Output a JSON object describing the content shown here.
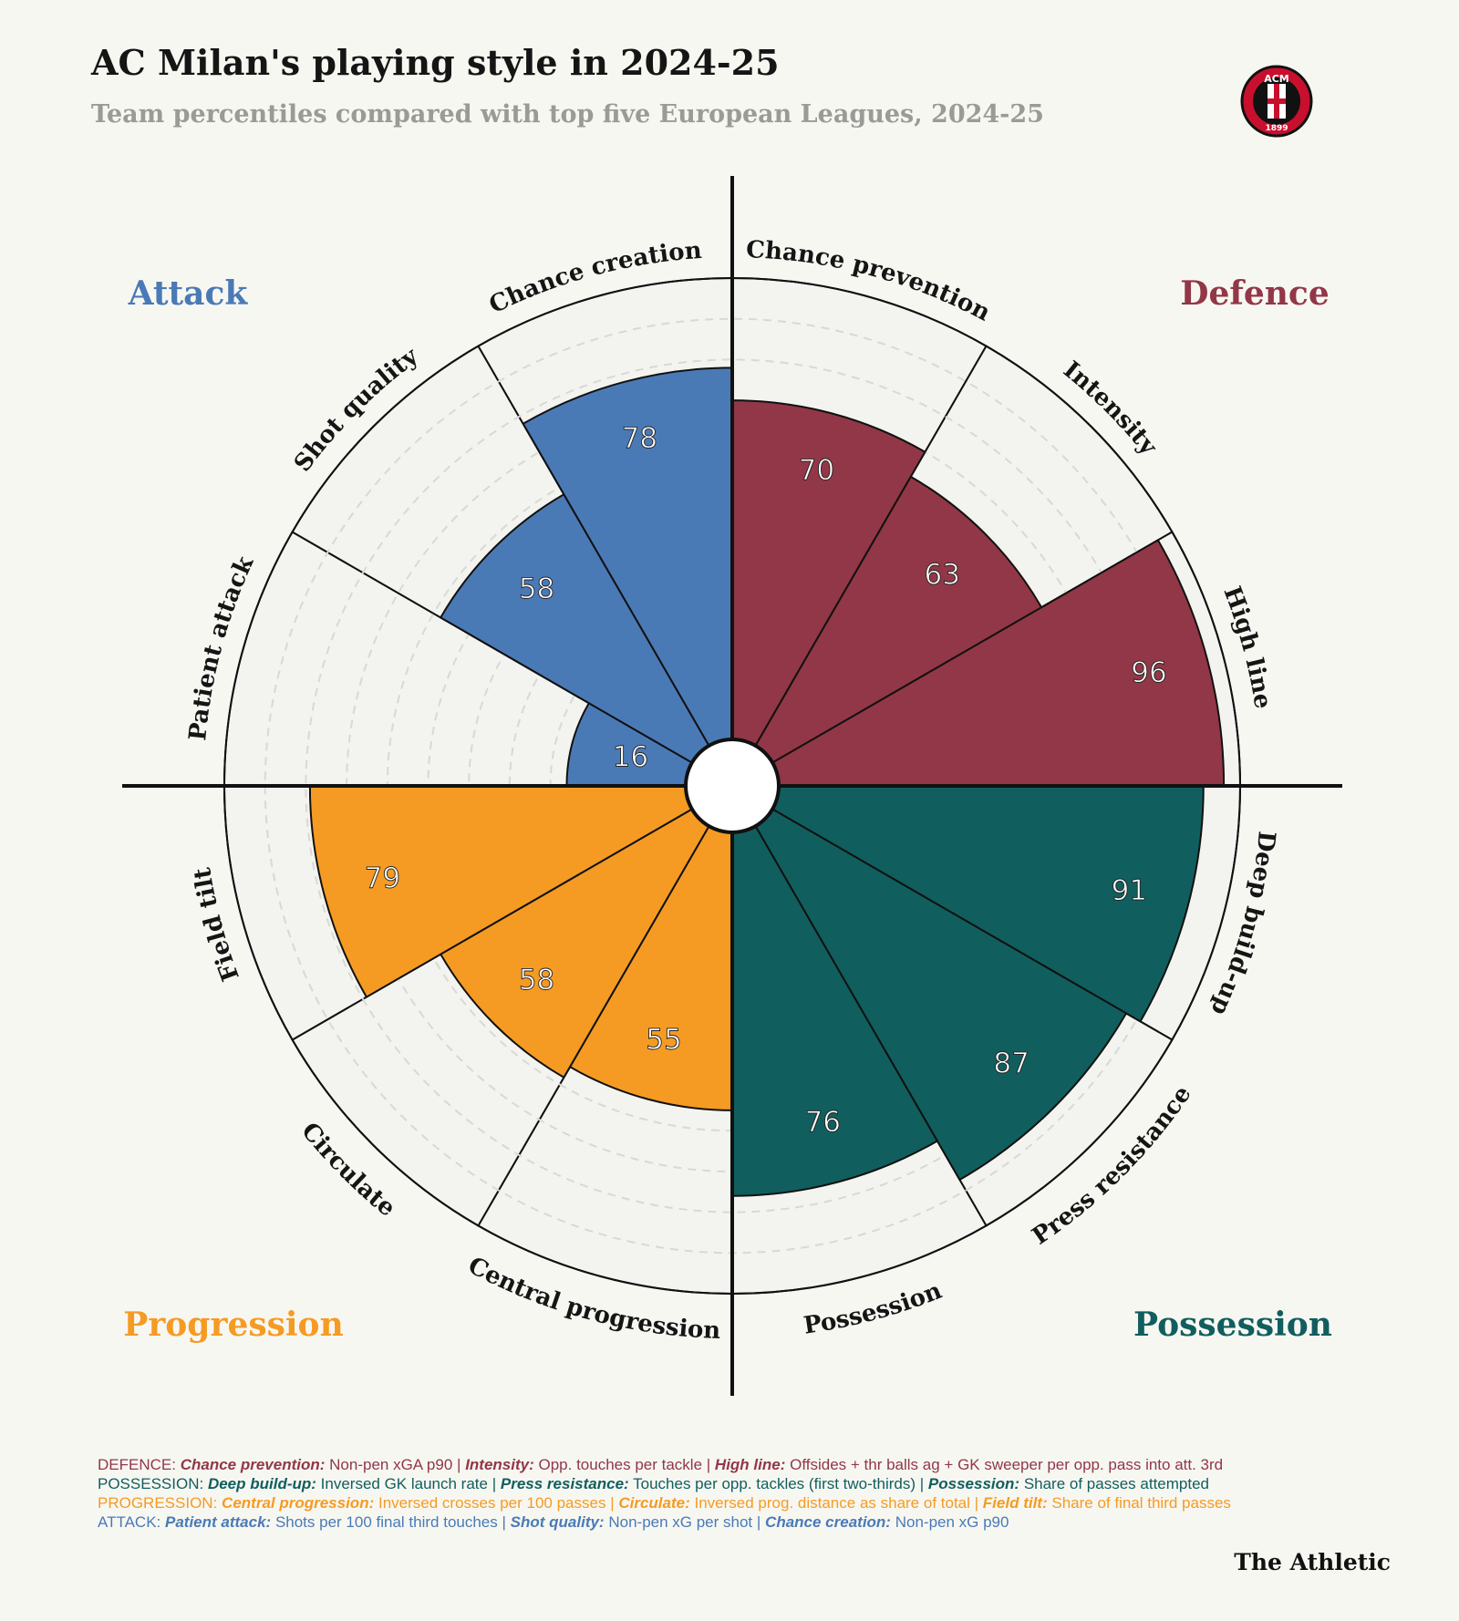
{
  "chart_data": {
    "type": "polar_bar",
    "title": "AC Milan's playing style in 2024-25",
    "subtitle": "Team percentiles compared with top five European Leagues, 2024-25",
    "categories": [
      "Chance prevention",
      "Intensity",
      "High line",
      "Deep build-up",
      "Press resistance",
      "Possession",
      "Central progression",
      "Circulate",
      "Field tilt",
      "Patient attack",
      "Shot quality",
      "Chance creation"
    ],
    "values": [
      70,
      63,
      96,
      91,
      87,
      76,
      55,
      58,
      79,
      16,
      58,
      78
    ],
    "colors": [
      "#923747",
      "#923747",
      "#923747",
      "#115e5e",
      "#115e5e",
      "#115e5e",
      "#f59b23",
      "#f59b23",
      "#f59b23",
      "#4a7ab6",
      "#4a7ab6",
      "#4a7ab6"
    ],
    "rlim": [
      0,
      100
    ],
    "rticks": [
      10,
      20,
      30,
      40,
      50,
      60,
      70,
      80,
      90
    ],
    "group_labels": [
      {
        "label": "Attack",
        "color": "#4a7ab6",
        "corner": "top-left"
      },
      {
        "label": "Defence",
        "color": "#923747",
        "corner": "top-right"
      },
      {
        "label": "Progression",
        "color": "#f59b23",
        "corner": "bottom-left"
      },
      {
        "label": "Possession",
        "color": "#115e5e",
        "corner": "bottom-right"
      }
    ],
    "logo": {
      "top": "ACM",
      "bottom": "1899"
    },
    "separator": "|",
    "notes": [
      {
        "group": "DEFENCE:",
        "color": "#923747",
        "items": [
          {
            "name": "Chance prevention:",
            "desc": "Non-pen xGA p90"
          },
          {
            "name": "Intensity:",
            "desc": "Opp. touches per tackle"
          },
          {
            "name": "High line:",
            "desc": "Offsides + thr balls ag + GK sweeper per opp. pass into att. 3rd"
          }
        ]
      },
      {
        "group": "POSSESSION:",
        "color": "#115e5e",
        "items": [
          {
            "name": "Deep build-up:",
            "desc": "Inversed GK launch rate"
          },
          {
            "name": "Press resistance:",
            "desc": "Touches per opp. tackles (first two-thirds)"
          },
          {
            "name": "Possession:",
            "desc": "Share of passes attempted"
          }
        ]
      },
      {
        "group": "PROGRESSION:",
        "color": "#f59b23",
        "items": [
          {
            "name": "Central progression:",
            "desc": "Inversed crosses per 100 passes"
          },
          {
            "name": "Circulate:",
            "desc": "Inversed prog. distance as share of total"
          },
          {
            "name": "Field tilt:",
            "desc": "Share of final third passes"
          }
        ]
      },
      {
        "group": "ATTACK:",
        "color": "#4a7ab6",
        "items": [
          {
            "name": "Patient attack:",
            "desc": "Shots per 100 final third touches"
          },
          {
            "name": "Shot quality:",
            "desc": "Non-pen xG per shot"
          },
          {
            "name": "Chance creation:",
            "desc": "Non-pen xG p90"
          }
        ]
      }
    ],
    "source": "The Athletic"
  }
}
